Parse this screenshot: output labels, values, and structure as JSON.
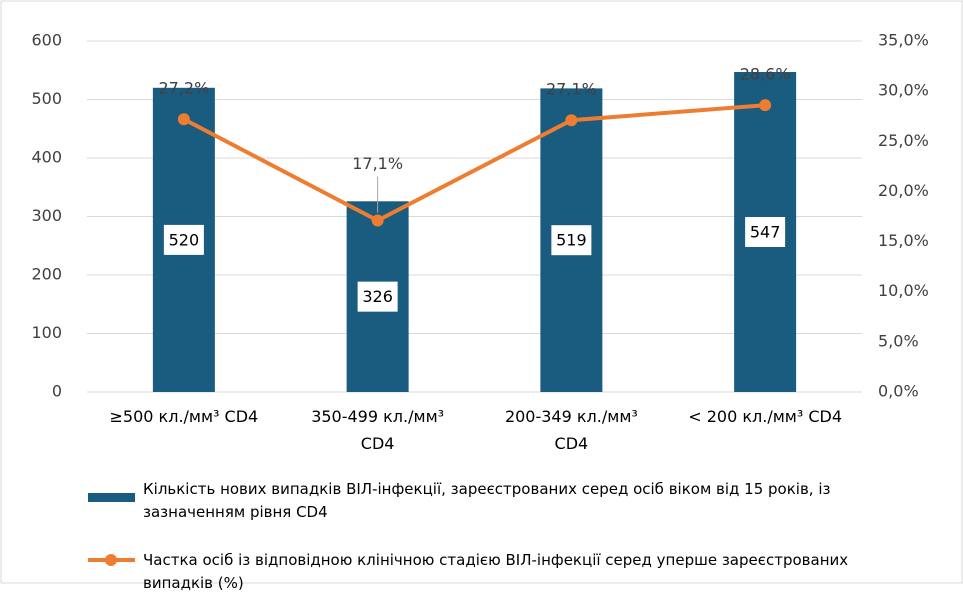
{
  "chart_data": {
    "type": "bar",
    "categories": [
      "≥500 кл./мм³ CD4",
      "350-499 кл./мм³ CD4",
      "200-349 кл./мм³ CD4",
      "< 200 кл./мм³ CD4"
    ],
    "series": [
      {
        "name": "Кількість нових випадків ВІЛ-інфекції, зареєстрованих серед осіб віком від 15 років, із зазначенням рівня CD4",
        "type": "bar",
        "color": "#1a5c80",
        "values": [
          520,
          326,
          519,
          547
        ]
      },
      {
        "name": "Частка осіб із відповідною клінічною стадією ВІЛ-інфекції серед уперше зареєстрованих випадків (%)",
        "type": "line",
        "axis": "y2",
        "color": "#ed7d31",
        "values": [
          27.2,
          17.1,
          27.1,
          28.6
        ],
        "value_labels": [
          "27,2%",
          "17,1%",
          "27,1%",
          "28,6%"
        ]
      }
    ],
    "ylim": [
      0,
      600
    ],
    "yticks": [
      0,
      100,
      200,
      300,
      400,
      500,
      600
    ],
    "y2lim": [
      0,
      35
    ],
    "y2ticks": [
      {
        "value": 0,
        "label": "0,0%"
      },
      {
        "value": 5,
        "label": "5,0%"
      },
      {
        "value": 10,
        "label": "10,0%"
      },
      {
        "value": 15,
        "label": "15,0%"
      },
      {
        "value": 20,
        "label": "20,0%"
      },
      {
        "value": 25,
        "label": "25,0%"
      },
      {
        "value": 30,
        "label": "30,0%"
      },
      {
        "value": 35,
        "label": "35,0%"
      }
    ],
    "grid": true
  }
}
